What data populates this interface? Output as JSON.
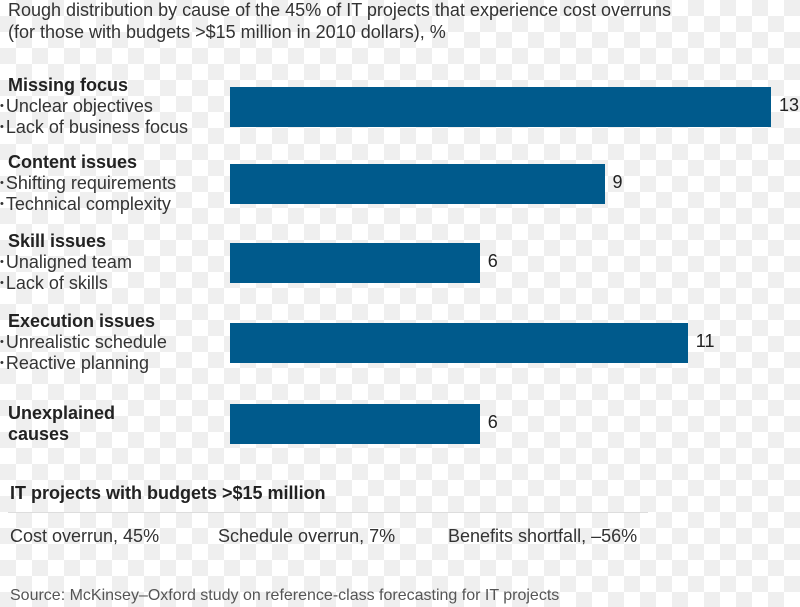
{
  "chart_data": {
    "type": "bar",
    "orientation": "horizontal",
    "title": "Rough distribution by cause of the 45% of IT projects that experience cost overruns",
    "subtitle": "(for those with budgets >$15 million in 2010 dollars), %",
    "categories": [
      {
        "label": "Missing focus",
        "items": [
          "Unclear objectives",
          "Lack of business focus"
        ]
      },
      {
        "label": "Content issues",
        "items": [
          "Shifting requirements",
          "Technical complexity"
        ]
      },
      {
        "label": "Skill issues",
        "items": [
          "Unaligned team",
          "Lack of skills"
        ]
      },
      {
        "label": "Execution issues",
        "items": [
          "Unrealistic schedule",
          "Reactive planning"
        ]
      },
      {
        "label": "Unexplained causes",
        "items": []
      }
    ],
    "values": [
      13,
      9,
      6,
      11,
      6
    ],
    "xlim": [
      0,
      13
    ],
    "bar_color": "#005a8c"
  },
  "summary": {
    "heading": "IT projects with budgets >$15 million",
    "stats": [
      "Cost overrun, 45%",
      "Schedule overrun, 7%",
      "Benefits shortfall, –56%"
    ]
  },
  "source": "Source: McKinsey–Oxford study on reference-class forecasting for IT projects"
}
